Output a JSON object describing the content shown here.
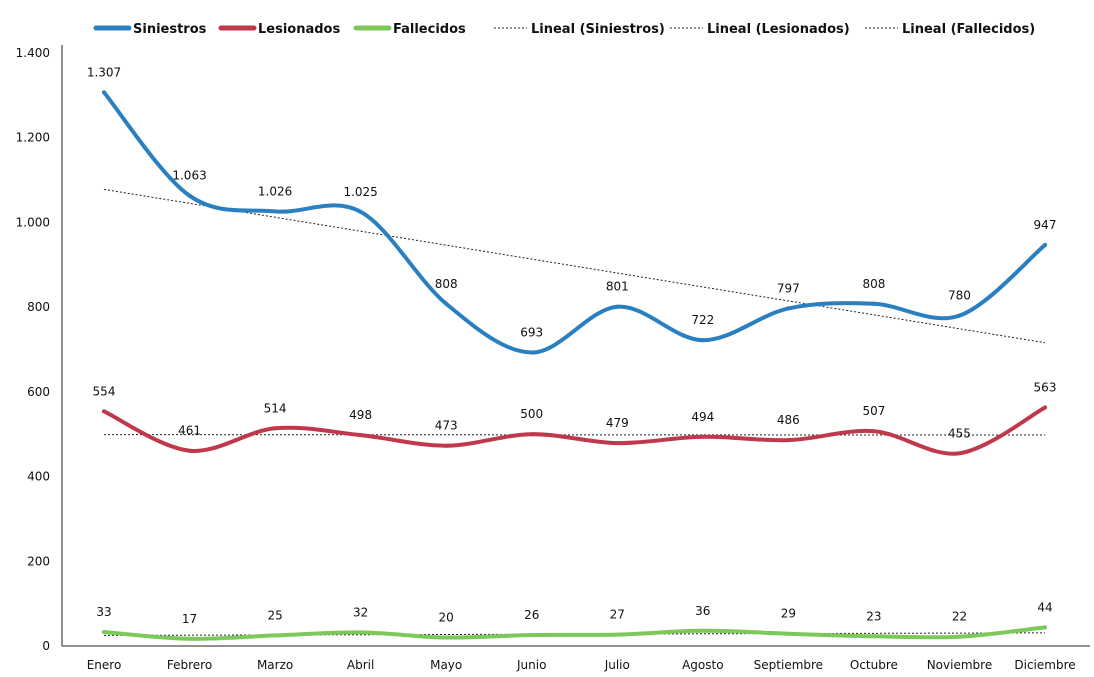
{
  "chart_data": {
    "type": "line",
    "title": "",
    "xlabel": "",
    "ylabel": "",
    "categories": [
      "Enero",
      "Febrero",
      "Marzo",
      "Abril",
      "Mayo",
      "Junio",
      "Julio",
      "Agosto",
      "Septiembre",
      "Octubre",
      "Noviembre",
      "Diciembre"
    ],
    "ylim": [
      0,
      1400
    ],
    "yticks": [
      0,
      200,
      400,
      600,
      800,
      1000,
      1200,
      1400
    ],
    "ytick_labels": [
      "0",
      "200",
      "400",
      "600",
      "800",
      "1.000",
      "1.200",
      "1.400"
    ],
    "grid": false,
    "legend_position": "top",
    "series": [
      {
        "name": "Siniestros",
        "color": "#2a7fc1",
        "values": [
          1307,
          1063,
          1026,
          1025,
          808,
          693,
          801,
          722,
          797,
          808,
          780,
          947
        ],
        "labels": [
          "1.307",
          "1.063",
          "1.026",
          "1.025",
          "808",
          "693",
          "801",
          "722",
          "797",
          "808",
          "780",
          "947"
        ]
      },
      {
        "name": "Lesionados",
        "color": "#c0384b",
        "values": [
          554,
          461,
          514,
          498,
          473,
          500,
          479,
          494,
          486,
          507,
          455,
          563
        ],
        "labels": [
          "554",
          "461",
          "514",
          "498",
          "473",
          "500",
          "479",
          "494",
          "486",
          "507",
          "455",
          "563"
        ]
      },
      {
        "name": "Fallecidos",
        "color": "#7cc95a",
        "values": [
          33,
          17,
          25,
          32,
          20,
          26,
          27,
          36,
          29,
          23,
          22,
          44
        ],
        "labels": [
          "33",
          "17",
          "25",
          "32",
          "20",
          "26",
          "27",
          "36",
          "29",
          "23",
          "22",
          "44"
        ]
      }
    ],
    "trendlines": [
      {
        "name": "Lineal (Siniestros)",
        "start": 1078,
        "end": 716
      },
      {
        "name": "Lineal (Lesionados)",
        "start": 499,
        "end": 498
      },
      {
        "name": "Lineal (Fallecidos)",
        "start": 25,
        "end": 31
      }
    ]
  }
}
